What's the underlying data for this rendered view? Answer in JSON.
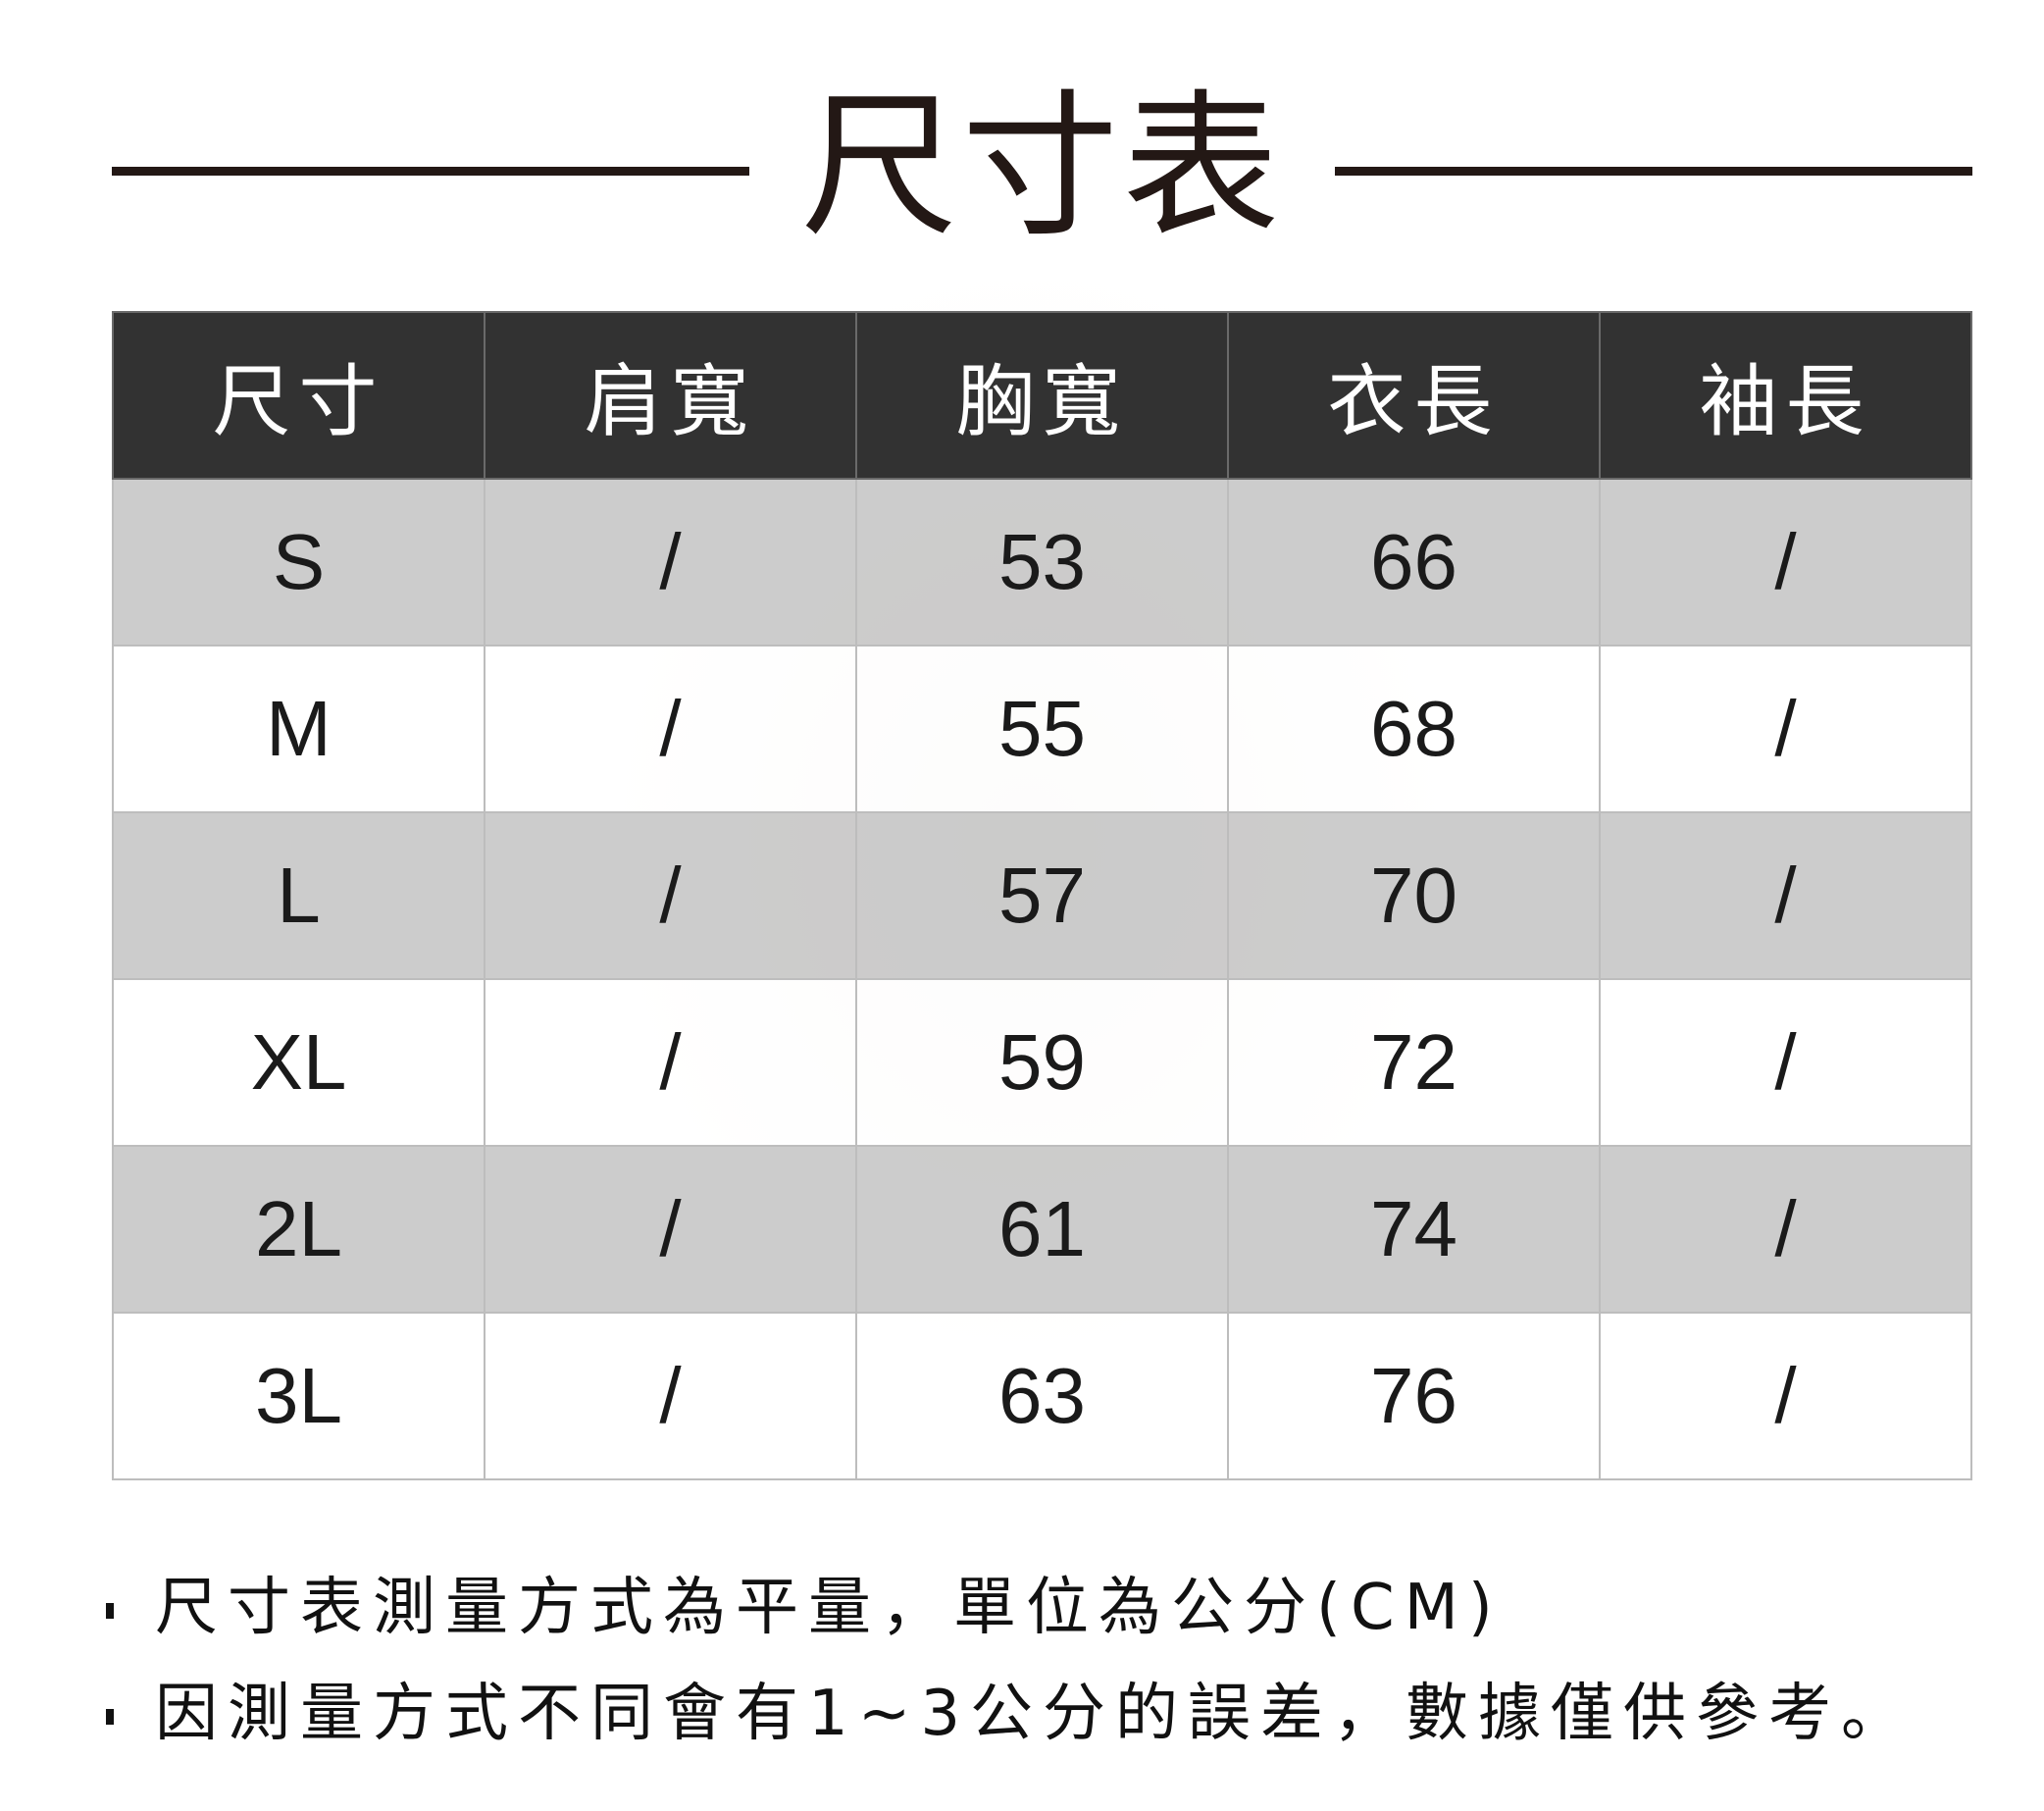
{
  "title": "尺寸表",
  "table": {
    "headers": [
      "尺寸",
      "肩寬",
      "胸寬",
      "衣長",
      "袖長"
    ],
    "rows": [
      [
        "S",
        "/",
        "53",
        "66",
        "/"
      ],
      [
        "M",
        "/",
        "55",
        "68",
        "/"
      ],
      [
        "L",
        "/",
        "57",
        "70",
        "/"
      ],
      [
        "XL",
        "/",
        "59",
        "72",
        "/"
      ],
      [
        "2L",
        "/",
        "61",
        "74",
        "/"
      ],
      [
        "3L",
        "/",
        "63",
        "76",
        "/"
      ]
    ]
  },
  "notes": [
    "尺寸表測量方式為平量，單位為公分(CM)",
    "因測量方式不同會有1~3公分的誤差，數據僅供參考。"
  ],
  "colors": {
    "header_bg": "#323232",
    "row_alt_bg": "#bebebe",
    "text": "#231815"
  }
}
